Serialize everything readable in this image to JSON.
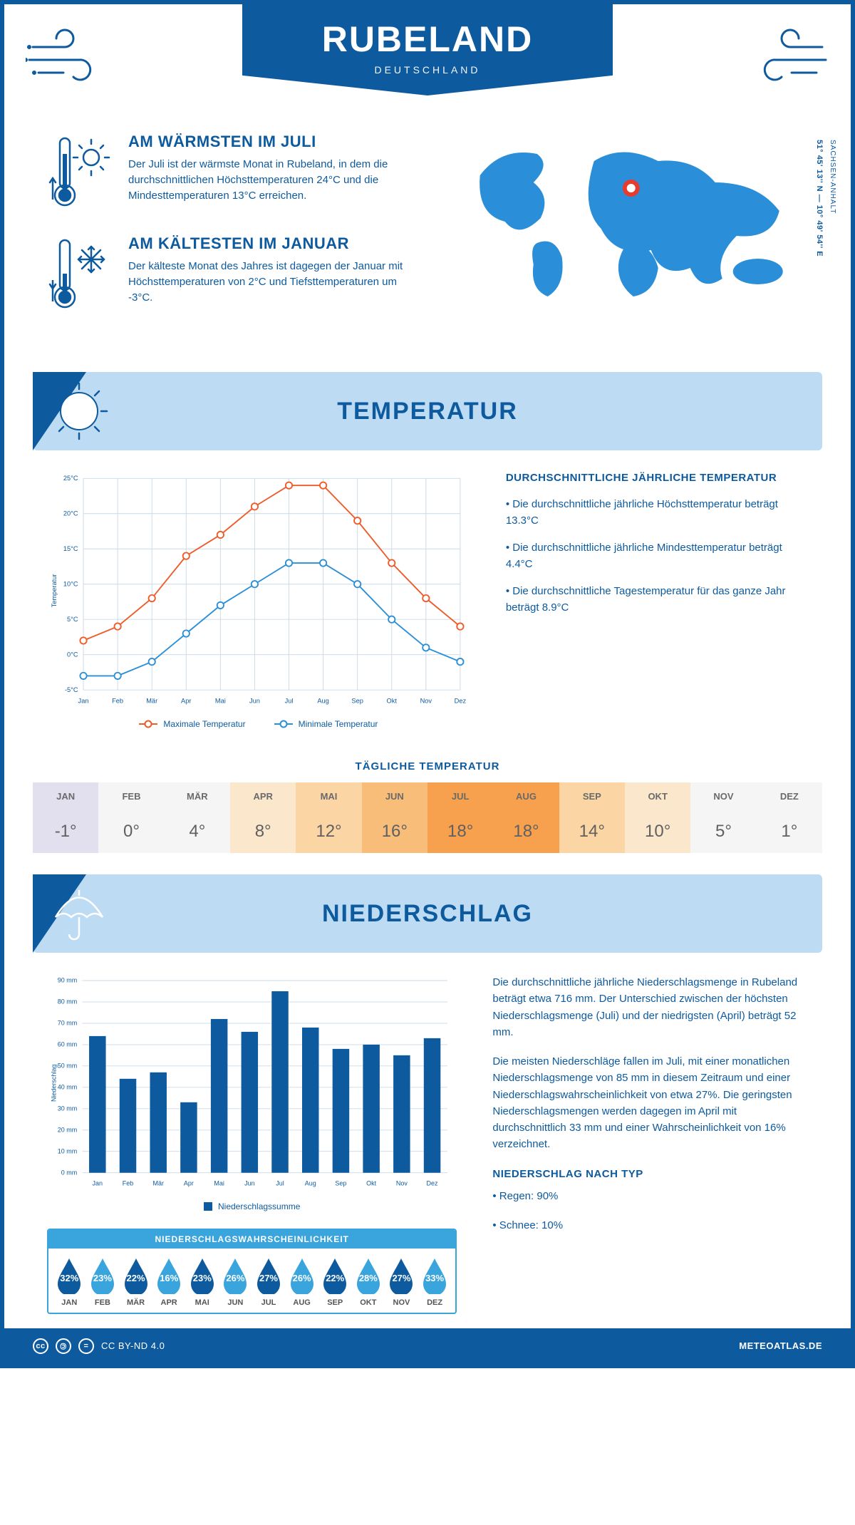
{
  "header": {
    "city": "RUBELAND",
    "country": "DEUTSCHLAND"
  },
  "location": {
    "region": "SACHSEN-ANHALT",
    "coords": "51° 45' 13'' N — 10° 49' 54'' E",
    "marker_color": "#e63b2e",
    "map_color": "#2a8fd8"
  },
  "facts": {
    "warm": {
      "title": "AM WÄRMSTEN IM JULI",
      "text": "Der Juli ist der wärmste Monat in Rubeland, in dem die durchschnittlichen Höchsttemperaturen 24°C und die Mindesttemperaturen 13°C erreichen."
    },
    "cold": {
      "title": "AM KÄLTESTEN IM JANUAR",
      "text": "Der kälteste Monat des Jahres ist dagegen der Januar mit Höchsttemperaturen von 2°C und Tiefsttemperaturen um -3°C."
    }
  },
  "sections": {
    "temperature_title": "TEMPERATUR",
    "precip_title": "NIEDERSCHLAG"
  },
  "months": [
    "Jan",
    "Feb",
    "Mär",
    "Apr",
    "Mai",
    "Jun",
    "Jul",
    "Aug",
    "Sep",
    "Okt",
    "Nov",
    "Dez"
  ],
  "months_upper": [
    "JAN",
    "FEB",
    "MÄR",
    "APR",
    "MAI",
    "JUN",
    "JUL",
    "AUG",
    "SEP",
    "OKT",
    "NOV",
    "DEZ"
  ],
  "temperature": {
    "chart": {
      "type": "line",
      "ylabel": "Temperatur",
      "ylim": [
        -5,
        25
      ],
      "ytick_step": 5,
      "max_series": {
        "label": "Maximale Temperatur",
        "color": "#ef5a28",
        "values": [
          2,
          4,
          8,
          14,
          17,
          21,
          24,
          24,
          19,
          13,
          8,
          4
        ]
      },
      "min_series": {
        "label": "Minimale Temperatur",
        "color": "#2a8fd8",
        "values": [
          -3,
          -3,
          -1,
          3,
          7,
          10,
          13,
          13,
          10,
          5,
          1,
          -1
        ]
      },
      "grid_color": "#c9d9e8",
      "background_color": "#ffffff",
      "label_fontsize": 10,
      "line_width": 2,
      "marker_size": 5
    },
    "summary": {
      "title": "DURCHSCHNITTLICHE JÄHRLICHE TEMPERATUR",
      "bullet1": "• Die durchschnittliche jährliche Höchsttemperatur beträgt 13.3°C",
      "bullet2": "• Die durchschnittliche jährliche Mindesttemperatur beträgt 4.4°C",
      "bullet3": "• Die durchschnittliche Tagestemperatur für das ganze Jahr beträgt 8.9°C"
    },
    "daily": {
      "title": "TÄGLICHE TEMPERATUR",
      "values": [
        -1,
        0,
        4,
        8,
        12,
        16,
        18,
        18,
        14,
        10,
        5,
        1
      ],
      "bg_colors": [
        "#e2e0ef",
        "#f5f5f5",
        "#f5f5f5",
        "#fbe7cc",
        "#fcd5a4",
        "#f9bd7a",
        "#f7a14f",
        "#f7a14f",
        "#fcd5a4",
        "#fbe7cc",
        "#f5f5f5",
        "#f5f5f5"
      ]
    }
  },
  "precip": {
    "chart": {
      "type": "bar",
      "ylabel": "Niederschlag",
      "ylim": [
        0,
        90
      ],
      "ytick_step": 10,
      "values": [
        64,
        44,
        47,
        33,
        72,
        66,
        85,
        68,
        58,
        60,
        55,
        63
      ],
      "bar_color": "#0d5a9e",
      "grid_color": "#c9d9e8",
      "bar_width": 0.55,
      "legend_label": "Niederschlagssumme",
      "unit": " mm"
    },
    "text": {
      "p1": "Die durchschnittliche jährliche Niederschlagsmenge in Rubeland beträgt etwa 716 mm. Der Unterschied zwischen der höchsten Niederschlagsmenge (Juli) und der niedrigsten (April) beträgt 52 mm.",
      "p2": "Die meisten Niederschläge fallen im Juli, mit einer monatlichen Niederschlagsmenge von 85 mm in diesem Zeitraum und einer Niederschlagswahrscheinlichkeit von etwa 27%. Die geringsten Niederschlagsmengen werden dagegen im April mit durchschnittlich 33 mm und einer Wahrscheinlichkeit von 16% verzeichnet.",
      "type_title": "NIEDERSCHLAG NACH TYP",
      "type_rain": "• Regen: 90%",
      "type_snow": "• Schnee: 10%"
    },
    "probability": {
      "title": "NIEDERSCHLAGSWAHRSCHEINLICHKEIT",
      "values": [
        32,
        23,
        22,
        16,
        23,
        26,
        27,
        26,
        22,
        28,
        27,
        33
      ],
      "drop_dark": "#0d5a9e",
      "drop_light": "#3aa4dd"
    }
  },
  "footer": {
    "license": "CC BY-ND 4.0",
    "site": "METEOATLAS.DE"
  },
  "palette": {
    "primary": "#0d5a9e",
    "banner_bg": "#bddcf4",
    "accent": "#3aa4dd"
  }
}
